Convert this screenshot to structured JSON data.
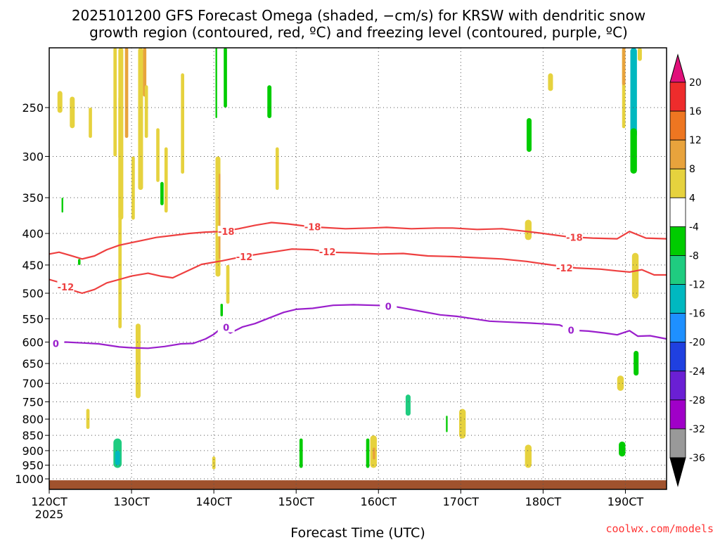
{
  "chart_data": {
    "type": "heatmap",
    "title_lines": [
      "2025101200 GFS Forecast Omega (shaded, −cm/s) for KRSW with dendritic snow",
      "growth region (contoured, red, ºC) and freezing level (contoured, purple, ºC)"
    ],
    "xlabel": "Forecast Time (UTC)",
    "ylabel": "",
    "credit": "coolwx.com/models",
    "x_ticks": [
      "120CT",
      "130CT",
      "140CT",
      "150CT",
      "160CT",
      "170CT",
      "180CT",
      "190CT"
    ],
    "x_year": "2025",
    "x_range_days": [
      12.0,
      19.5
    ],
    "y_ticks": [
      250,
      300,
      350,
      400,
      450,
      500,
      550,
      600,
      650,
      700,
      750,
      800,
      850,
      900,
      950,
      1000
    ],
    "y_range_hpa": [
      1040,
      200
    ],
    "y_scale": "log-pressure",
    "grid": "dotted",
    "colorbar": {
      "ticks": [
        20,
        16,
        12,
        8,
        4,
        -4,
        -8,
        -12,
        -16,
        -20,
        -24,
        -28,
        -32,
        -36
      ],
      "colors": [
        "#ee2c2c",
        "#ee7621",
        "#e8a33c",
        "#e6d23e",
        "#ffffff",
        "#00cc00",
        "#1fcc80",
        "#00b8c0",
        "#1e90ff",
        "#1f40e0",
        "#6a1fd4",
        "#a000c8",
        "#999999"
      ],
      "top_arrow_color": "#e0107a",
      "bottom_arrow_color": "#000000"
    },
    "contours": [
      {
        "label": "-18",
        "color": "#ee4040",
        "points": [
          [
            12.0,
            432
          ],
          [
            12.12,
            429
          ],
          [
            12.25,
            434
          ],
          [
            12.4,
            440
          ],
          [
            12.55,
            435
          ],
          [
            12.7,
            425
          ],
          [
            12.85,
            418
          ],
          [
            13.0,
            414
          ],
          [
            13.15,
            410
          ],
          [
            13.3,
            406
          ],
          [
            13.5,
            403
          ],
          [
            13.7,
            400
          ],
          [
            13.9,
            398
          ],
          [
            14.1,
            397
          ],
          [
            14.3,
            393
          ],
          [
            14.5,
            388
          ],
          [
            14.7,
            384
          ],
          [
            14.9,
            386
          ],
          [
            15.1,
            389
          ],
          [
            15.3,
            391
          ],
          [
            15.6,
            393
          ],
          [
            15.9,
            392
          ],
          [
            16.1,
            391
          ],
          [
            16.4,
            393
          ],
          [
            16.7,
            392
          ],
          [
            16.9,
            392
          ],
          [
            17.2,
            394
          ],
          [
            17.5,
            393
          ],
          [
            17.8,
            397
          ],
          [
            18.0,
            400
          ],
          [
            18.3,
            405
          ],
          [
            18.6,
            407
          ],
          [
            18.9,
            408
          ],
          [
            19.05,
            397
          ],
          [
            19.25,
            407
          ],
          [
            19.5,
            408
          ]
        ],
        "label_positions": [
          [
            14.15,
            397
          ],
          [
            15.2,
            390
          ],
          [
            18.38,
            406
          ]
        ]
      },
      {
        "label": "-12",
        "color": "#ee4040",
        "points": [
          [
            12.0,
            475
          ],
          [
            12.12,
            480
          ],
          [
            12.25,
            493
          ],
          [
            12.4,
            500
          ],
          [
            12.55,
            493
          ],
          [
            12.7,
            481
          ],
          [
            12.85,
            475
          ],
          [
            13.0,
            469
          ],
          [
            13.2,
            464
          ],
          [
            13.35,
            469
          ],
          [
            13.5,
            472
          ],
          [
            13.65,
            462
          ],
          [
            13.85,
            449
          ],
          [
            14.1,
            443
          ],
          [
            14.35,
            436
          ],
          [
            14.55,
            432
          ],
          [
            14.75,
            428
          ],
          [
            14.95,
            424
          ],
          [
            15.2,
            425
          ],
          [
            15.4,
            429
          ],
          [
            15.7,
            430
          ],
          [
            16.0,
            432
          ],
          [
            16.3,
            431
          ],
          [
            16.6,
            435
          ],
          [
            16.9,
            436
          ],
          [
            17.2,
            438
          ],
          [
            17.5,
            440
          ],
          [
            17.8,
            444
          ],
          [
            18.1,
            450
          ],
          [
            18.4,
            455
          ],
          [
            18.7,
            457
          ],
          [
            18.9,
            460
          ],
          [
            19.05,
            462
          ],
          [
            19.2,
            458
          ],
          [
            19.35,
            467
          ],
          [
            19.5,
            467
          ]
        ],
        "label_positions": [
          [
            12.2,
            488
          ],
          [
            14.37,
            436
          ],
          [
            15.38,
            428
          ],
          [
            18.26,
            455
          ]
        ]
      },
      {
        "label": "0",
        "color": "#9a1fcc",
        "points": [
          [
            12.0,
            603
          ],
          [
            12.2,
            600
          ],
          [
            12.4,
            602
          ],
          [
            12.6,
            604
          ],
          [
            12.85,
            611
          ],
          [
            13.0,
            613
          ],
          [
            13.2,
            614
          ],
          [
            13.4,
            610
          ],
          [
            13.6,
            604
          ],
          [
            13.75,
            603
          ],
          [
            13.9,
            593
          ],
          [
            14.0,
            583
          ],
          [
            14.1,
            568
          ],
          [
            14.2,
            580
          ],
          [
            14.35,
            567
          ],
          [
            14.5,
            560
          ],
          [
            14.65,
            550
          ],
          [
            14.85,
            537
          ],
          [
            15.0,
            531
          ],
          [
            15.2,
            529
          ],
          [
            15.45,
            523
          ],
          [
            15.7,
            522
          ],
          [
            15.95,
            523
          ],
          [
            16.15,
            524
          ],
          [
            16.35,
            530
          ],
          [
            16.55,
            536
          ],
          [
            16.75,
            542
          ],
          [
            16.95,
            545
          ],
          [
            17.15,
            550
          ],
          [
            17.35,
            555
          ],
          [
            17.6,
            557
          ],
          [
            17.85,
            559
          ],
          [
            18.05,
            561
          ],
          [
            18.2,
            563
          ],
          [
            18.35,
            574
          ],
          [
            18.55,
            576
          ],
          [
            18.75,
            580
          ],
          [
            18.9,
            584
          ],
          [
            19.05,
            575
          ],
          [
            19.15,
            587
          ],
          [
            19.3,
            586
          ],
          [
            19.5,
            593
          ]
        ],
        "label_positions": [
          [
            12.08,
            603
          ],
          [
            14.15,
            568
          ],
          [
            16.12,
            525
          ],
          [
            18.34,
            574
          ]
        ]
      }
    ],
    "omega_cells": [
      {
        "x0": 12.78,
        "x1": 12.82,
        "p0": 200,
        "p1": 300,
        "value": 6
      },
      {
        "x0": 12.84,
        "x1": 12.9,
        "p0": 200,
        "p1": 380,
        "value": 6
      },
      {
        "x0": 12.92,
        "x1": 12.96,
        "p0": 200,
        "p1": 280,
        "value": 10
      },
      {
        "x0": 12.84,
        "x1": 12.88,
        "p0": 240,
        "p1": 570,
        "value": 6
      },
      {
        "x0": 13.0,
        "x1": 13.04,
        "p0": 300,
        "p1": 380,
        "value": 6
      },
      {
        "x0": 13.08,
        "x1": 13.14,
        "p0": 200,
        "p1": 340,
        "value": 6
      },
      {
        "x0": 13.14,
        "x1": 13.18,
        "p0": 200,
        "p1": 240,
        "value": 10
      },
      {
        "x0": 13.16,
        "x1": 13.2,
        "p0": 230,
        "p1": 280,
        "value": 6
      },
      {
        "x0": 13.4,
        "x1": 13.44,
        "p0": 290,
        "p1": 370,
        "value": 6
      },
      {
        "x0": 13.6,
        "x1": 13.64,
        "p0": 220,
        "p1": 320,
        "value": 6
      },
      {
        "x0": 14.02,
        "x1": 14.08,
        "p0": 300,
        "p1": 470,
        "value": 6
      },
      {
        "x0": 14.06,
        "x1": 14.08,
        "p0": 320,
        "p1": 440,
        "value": 10
      },
      {
        "x0": 14.15,
        "x1": 14.19,
        "p0": 450,
        "p1": 520,
        "value": 6
      },
      {
        "x0": 13.05,
        "x1": 13.11,
        "p0": 560,
        "p1": 740,
        "value": 6
      },
      {
        "x0": 12.45,
        "x1": 12.49,
        "p0": 770,
        "p1": 830,
        "value": 6
      },
      {
        "x0": 13.98,
        "x1": 14.02,
        "p0": 920,
        "p1": 965,
        "value": 6
      },
      {
        "x0": 15.9,
        "x1": 15.98,
        "p0": 850,
        "p1": 960,
        "value": 6
      },
      {
        "x0": 15.93,
        "x1": 15.96,
        "p0": 890,
        "p1": 930,
        "value": 10
      },
      {
        "x0": 16.98,
        "x1": 17.06,
        "p0": 770,
        "p1": 860,
        "value": 6
      },
      {
        "x0": 17.78,
        "x1": 17.86,
        "p0": 380,
        "p1": 410,
        "value": 6
      },
      {
        "x0": 17.78,
        "x1": 17.86,
        "p0": 880,
        "p1": 960,
        "value": 6
      },
      {
        "x0": 18.9,
        "x1": 18.98,
        "p0": 680,
        "p1": 720,
        "value": 6
      },
      {
        "x0": 18.96,
        "x1": 19.0,
        "p0": 200,
        "p1": 270,
        "value": 6
      },
      {
        "x0": 18.96,
        "x1": 19.0,
        "p0": 200,
        "p1": 230,
        "value": 10
      },
      {
        "x0": 19.08,
        "x1": 19.16,
        "p0": 430,
        "p1": 510,
        "value": 6
      },
      {
        "x0": 18.06,
        "x1": 18.12,
        "p0": 220,
        "p1": 235,
        "value": 6
      },
      {
        "x0": 14.75,
        "x1": 14.79,
        "p0": 290,
        "p1": 340,
        "value": 6
      },
      {
        "x0": 13.3,
        "x1": 13.34,
        "p0": 270,
        "p1": 330,
        "value": 6
      },
      {
        "x0": 12.25,
        "x1": 12.31,
        "p0": 240,
        "p1": 270,
        "value": 6
      },
      {
        "x0": 12.1,
        "x1": 12.16,
        "p0": 235,
        "p1": 255,
        "value": 6
      },
      {
        "x0": 12.48,
        "x1": 12.52,
        "p0": 250,
        "p1": 280,
        "value": 6
      },
      {
        "x0": 14.02,
        "x1": 14.04,
        "p0": 200,
        "p1": 260,
        "value": -6
      },
      {
        "x0": 14.12,
        "x1": 14.16,
        "p0": 200,
        "p1": 250,
        "value": -6
      },
      {
        "x0": 14.65,
        "x1": 14.7,
        "p0": 230,
        "p1": 260,
        "value": -6
      },
      {
        "x0": 19.06,
        "x1": 19.14,
        "p0": 200,
        "p1": 280,
        "value": -14
      },
      {
        "x0": 19.06,
        "x1": 19.14,
        "p0": 270,
        "p1": 320,
        "value": -6
      },
      {
        "x0": 17.8,
        "x1": 17.86,
        "p0": 260,
        "p1": 295,
        "value": -6
      },
      {
        "x0": 12.78,
        "x1": 12.88,
        "p0": 860,
        "p1": 960,
        "value": -10
      },
      {
        "x0": 12.8,
        "x1": 12.86,
        "p0": 900,
        "p1": 950,
        "value": -14
      },
      {
        "x0": 15.04,
        "x1": 15.08,
        "p0": 860,
        "p1": 960,
        "value": -6
      },
      {
        "x0": 15.85,
        "x1": 15.89,
        "p0": 860,
        "p1": 960,
        "value": -6
      },
      {
        "x0": 16.33,
        "x1": 16.39,
        "p0": 730,
        "p1": 790,
        "value": -10
      },
      {
        "x0": 16.82,
        "x1": 16.84,
        "p0": 790,
        "p1": 840,
        "value": -6
      },
      {
        "x0": 18.92,
        "x1": 19.0,
        "p0": 870,
        "p1": 920,
        "value": -6
      },
      {
        "x0": 19.1,
        "x1": 19.16,
        "p0": 620,
        "p1": 680,
        "value": -6
      },
      {
        "x0": 13.35,
        "x1": 13.39,
        "p0": 330,
        "p1": 360,
        "value": -6
      },
      {
        "x0": 14.08,
        "x1": 14.11,
        "p0": 520,
        "p1": 545,
        "value": -6
      },
      {
        "x0": 12.15,
        "x1": 12.17,
        "p0": 350,
        "p1": 370,
        "value": -6
      },
      {
        "x0": 12.35,
        "x1": 12.38,
        "p0": 440,
        "p1": 450,
        "value": -6
      },
      {
        "x0": 19.15,
        "x1": 19.2,
        "p0": 200,
        "p1": 210,
        "value": 6
      }
    ],
    "surface_band": {
      "p_top": 1000,
      "color": "#a0522d"
    }
  }
}
